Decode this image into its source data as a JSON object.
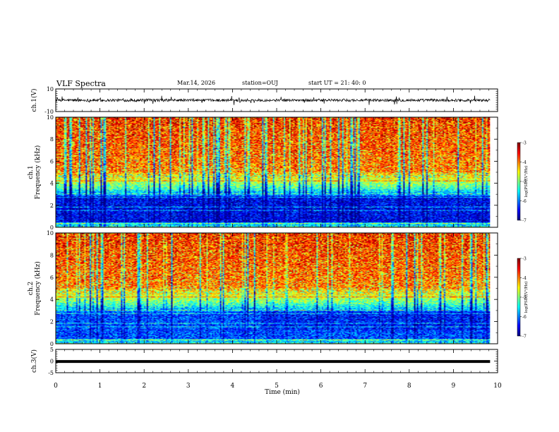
{
  "header": {
    "title": "VLF Spectra",
    "date": "Mar.14, 2026",
    "station": "station=OUJ",
    "start": "start  UT =   21: 40: 0"
  },
  "chart_data": [
    {
      "type": "line",
      "panel": "ch1-waveform",
      "ylabel": "ch.1(V)",
      "ylim": [
        -10,
        10
      ],
      "yticks": [
        "10",
        "-10"
      ],
      "xlim": [
        0,
        10
      ],
      "baseline": 0,
      "noise_amplitude": 2,
      "color": "#000000"
    },
    {
      "type": "heatmap",
      "panel": "ch1-spectrogram",
      "ylabel": "ch.1\nFrequency (kHz)",
      "ylim": [
        0,
        10
      ],
      "yticks": [
        "0",
        "2",
        "4",
        "6",
        "8",
        "10"
      ],
      "xlim": [
        0,
        9.83
      ],
      "colorbar": {
        "label": "log(PSD)(V²/Hz)",
        "range": [
          -7,
          -3
        ],
        "ticks": [
          "-3",
          "-4",
          "-5",
          "-6",
          "-7"
        ]
      }
    },
    {
      "type": "heatmap",
      "panel": "ch2-spectrogram",
      "ylabel": "ch.2\nFrequency (kHz)",
      "ylim": [
        0,
        10
      ],
      "yticks": [
        "0",
        "2",
        "4",
        "6",
        "8",
        "10"
      ],
      "xlim": [
        0,
        9.83
      ],
      "colorbar": {
        "label": "log(PSD)(V²/Hz)",
        "range": [
          -7,
          -3
        ],
        "ticks": [
          "-3",
          "-4",
          "-5",
          "-6",
          "-7"
        ]
      }
    },
    {
      "type": "line",
      "panel": "ch3-waveform",
      "ylabel": "ch.3(V)",
      "ylim": [
        -5,
        5
      ],
      "yticks": [
        "5",
        "0",
        "-5"
      ],
      "xlim": [
        0,
        10
      ],
      "value": -0.2,
      "color": "#000000"
    }
  ],
  "xaxis": {
    "label": "Time (min)",
    "ticks": [
      "0",
      "1",
      "2",
      "3",
      "4",
      "5",
      "6",
      "7",
      "8",
      "9",
      "10"
    ],
    "range": [
      0,
      10
    ]
  }
}
